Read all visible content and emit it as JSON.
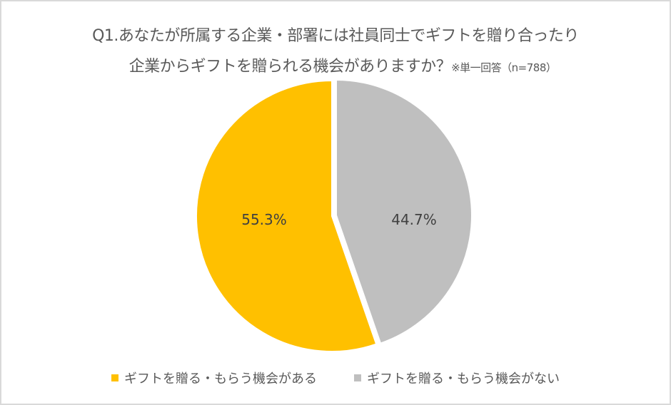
{
  "title": {
    "line1": "Q1.あなたが所属する企業・部署には社員同士でギフトを贈り合ったり",
    "line2": "企業からギフトを贈られる機会がありますか？",
    "note": "※単一回答（n=788）"
  },
  "labels": {
    "yes": "55.3%",
    "no": "44.7%"
  },
  "legend": {
    "yes": "ギフトを贈る・もらう機会がある",
    "no": "ギフトを贈る・もらう機会がない"
  },
  "colors": {
    "yes": "#ffc000",
    "no": "#bfbfbf",
    "border": "#d9d9d9"
  },
  "chart_data": {
    "type": "pie",
    "title": "Q1.あなたが所属する企業・部署には社員同士でギフトを贈り合ったり企業からギフトを贈られる機会がありますか？ ※単一回答（n=788）",
    "categories": [
      "ギフトを贈る・もらう機会がある",
      "ギフトを贈る・もらう機会がない"
    ],
    "values": [
      55.3,
      44.7
    ],
    "unit": "%",
    "n": 788,
    "colors": [
      "#ffc000",
      "#bfbfbf"
    ],
    "legend_position": "bottom",
    "data_labels": [
      "55.3%",
      "44.7%"
    ]
  }
}
